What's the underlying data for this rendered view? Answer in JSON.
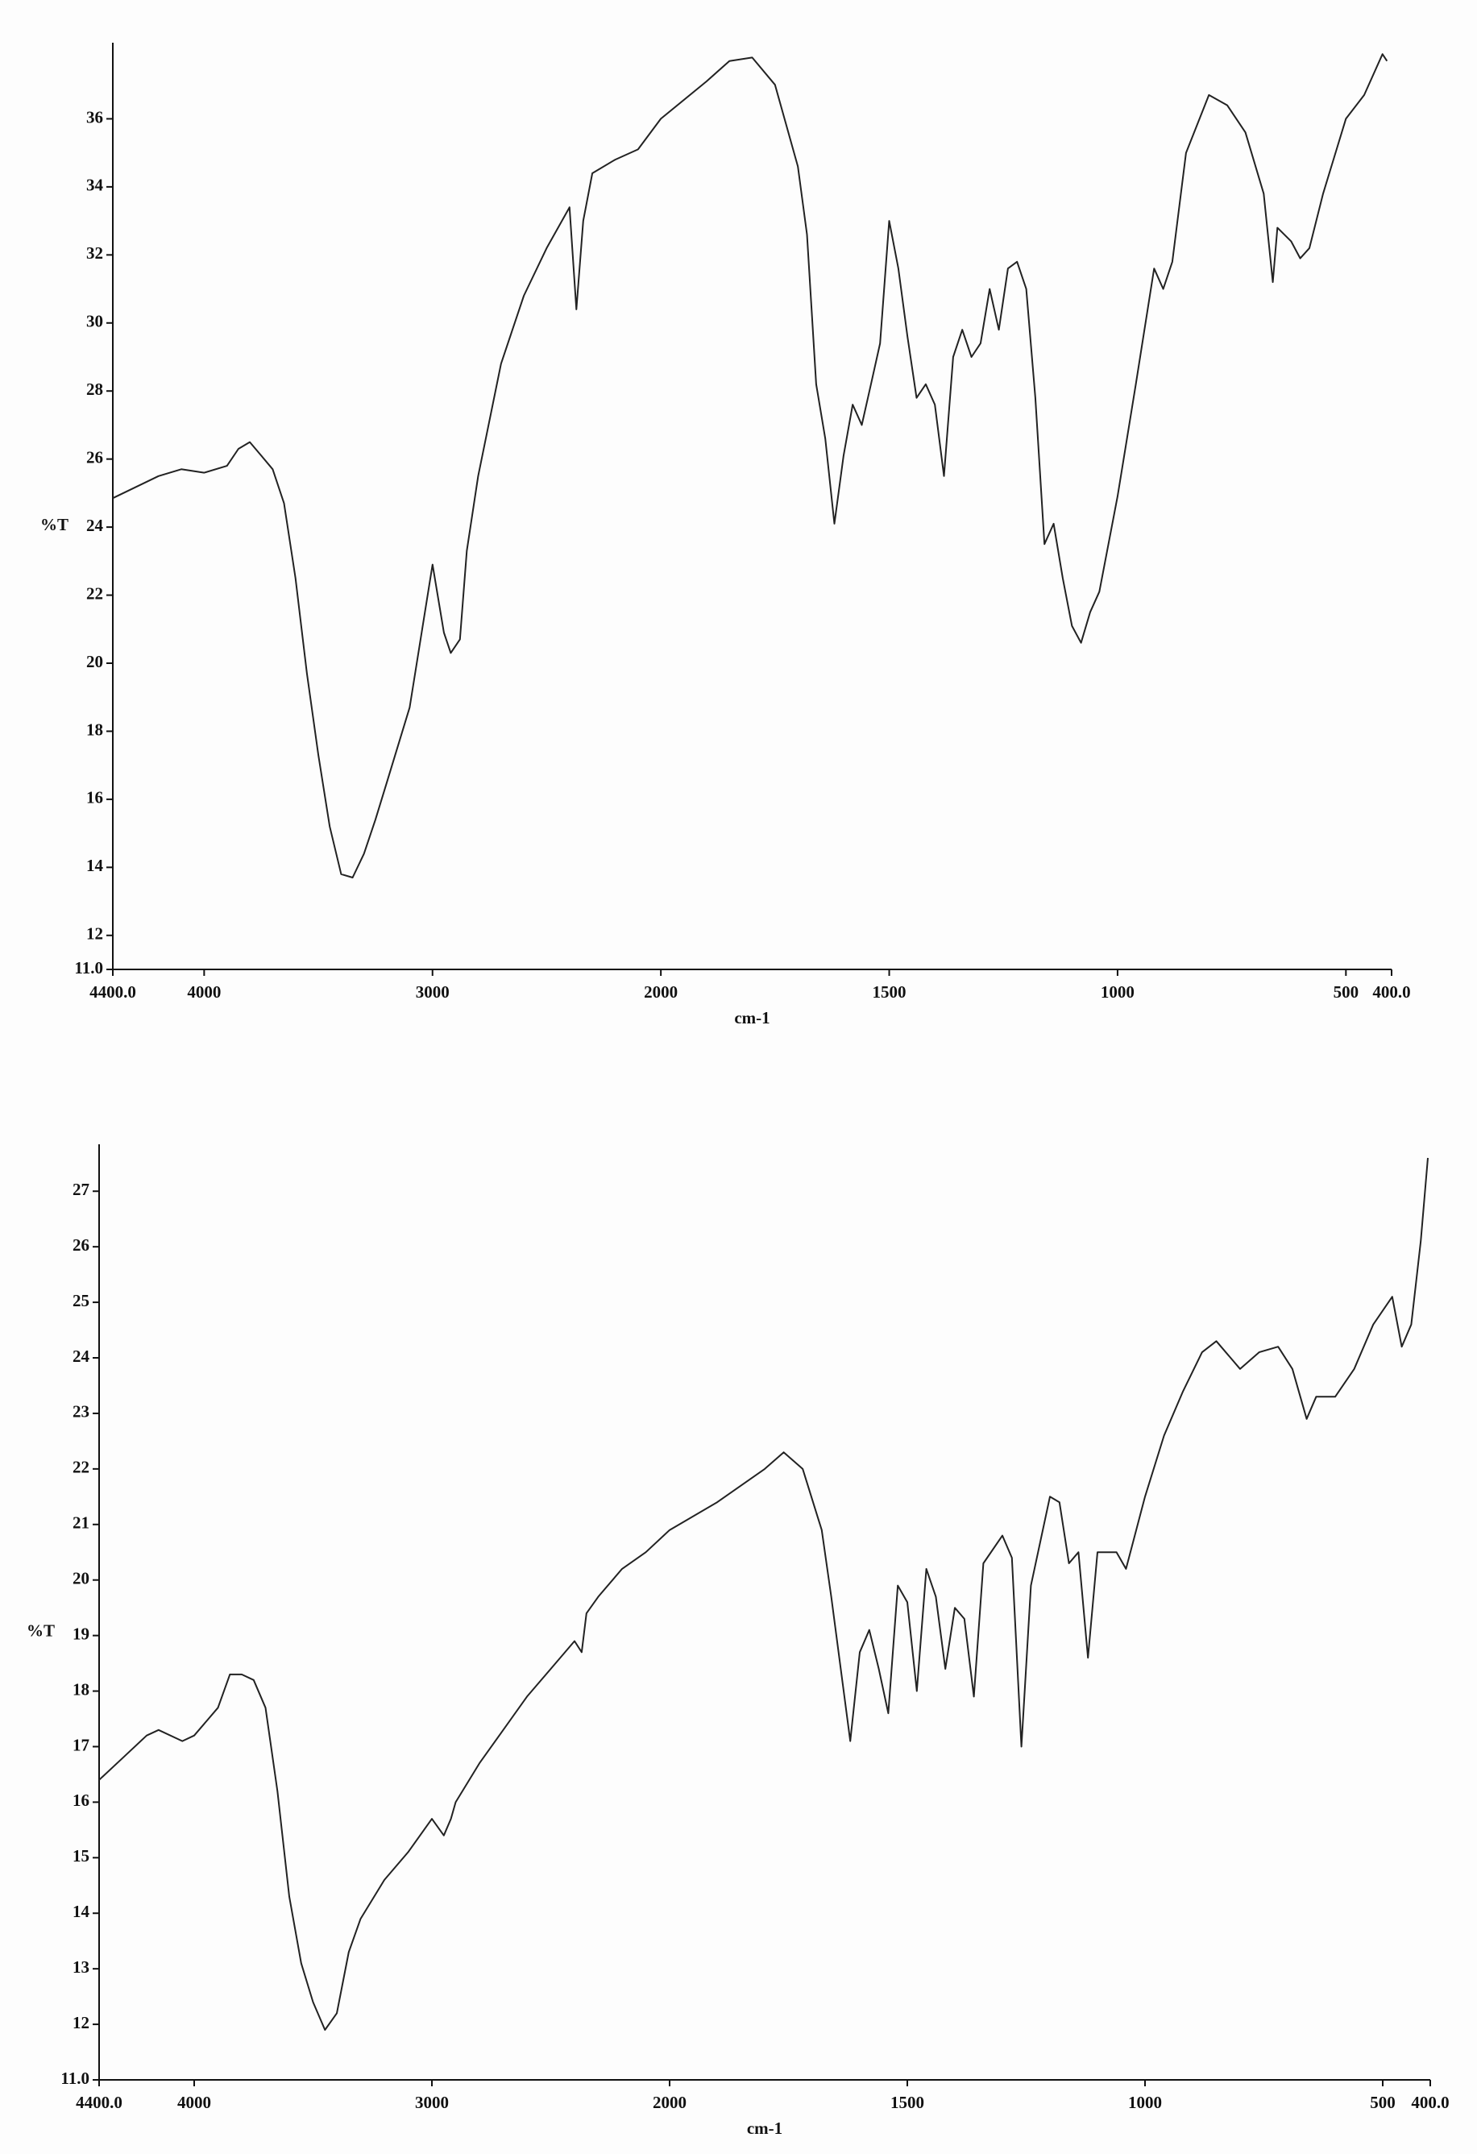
{
  "chart_data": [
    {
      "type": "line",
      "y_label": "%T",
      "x_label": "cm-1",
      "color": "#222222",
      "xlim": [
        4400,
        400
      ],
      "xscale_break": 2000,
      "ylim": [
        11,
        38
      ],
      "xticks": [
        {
          "value": 4400,
          "label": "4400.0"
        },
        4000,
        3000,
        2000,
        1500,
        1000,
        500,
        {
          "value": 400,
          "label": "400.0"
        }
      ],
      "yticks": [
        {
          "value": 11,
          "label": "11.0"
        },
        12,
        14,
        16,
        18,
        20,
        22,
        24,
        26,
        28,
        30,
        32,
        34,
        36
      ],
      "x": [
        4400,
        4200,
        4100,
        4000,
        3900,
        3850,
        3800,
        3750,
        3700,
        3650,
        3600,
        3550,
        3500,
        3450,
        3400,
        3350,
        3300,
        3250,
        3200,
        3100,
        3000,
        2950,
        2920,
        2880,
        2850,
        2800,
        2700,
        2600,
        2500,
        2400,
        2370,
        2340,
        2300,
        2200,
        2100,
        2000,
        1900,
        1850,
        1800,
        1750,
        1700,
        1680,
        1660,
        1640,
        1620,
        1600,
        1580,
        1560,
        1540,
        1520,
        1500,
        1480,
        1460,
        1440,
        1420,
        1400,
        1380,
        1360,
        1340,
        1320,
        1300,
        1280,
        1260,
        1240,
        1220,
        1200,
        1180,
        1160,
        1140,
        1120,
        1100,
        1080,
        1060,
        1040,
        1000,
        960,
        920,
        900,
        880,
        850,
        800,
        760,
        720,
        680,
        660,
        650,
        620,
        600,
        580,
        550,
        500,
        460,
        420,
        410
      ],
      "values": [
        24.85,
        25.5,
        25.7,
        25.6,
        25.8,
        26.3,
        26.5,
        26.1,
        25.7,
        24.7,
        22.5,
        19.7,
        17.3,
        15.2,
        13.8,
        13.7,
        14.4,
        15.4,
        16.5,
        18.7,
        22.9,
        20.9,
        20.3,
        20.7,
        23.3,
        25.5,
        28.8,
        30.8,
        32.2,
        33.4,
        30.4,
        33.0,
        34.4,
        34.8,
        35.1,
        36.0,
        37.1,
        37.7,
        37.8,
        37.0,
        34.6,
        32.6,
        28.2,
        26.6,
        24.1,
        26.1,
        27.6,
        27.0,
        28.2,
        29.4,
        33.0,
        31.6,
        29.6,
        27.8,
        28.2,
        27.6,
        25.5,
        29.0,
        29.8,
        29.0,
        29.4,
        31.0,
        29.8,
        31.6,
        31.8,
        31.0,
        27.8,
        23.5,
        24.1,
        22.5,
        21.1,
        20.6,
        21.5,
        22.1,
        24.9,
        28.2,
        31.6,
        31.0,
        31.8,
        35.0,
        36.7,
        36.4,
        35.6,
        33.8,
        31.2,
        32.8,
        32.4,
        31.9,
        32.2,
        33.8,
        36.0,
        36.7,
        37.9,
        37.7
      ]
    },
    {
      "type": "line",
      "y_label": "%T",
      "x_label": "cm-1",
      "color": "#222222",
      "xlim": [
        4400,
        400
      ],
      "xscale_break": 2000,
      "ylim": [
        11,
        27.7
      ],
      "xticks": [
        {
          "value": 4400,
          "label": "4400.0"
        },
        4000,
        3000,
        2000,
        1500,
        1000,
        500,
        {
          "value": 400,
          "label": "400.0"
        }
      ],
      "yticks": [
        {
          "value": 11,
          "label": "11.0"
        },
        12,
        13,
        14,
        15,
        16,
        17,
        18,
        19,
        20,
        21,
        22,
        23,
        24,
        25,
        26,
        27
      ],
      "x": [
        4400,
        4300,
        4200,
        4150,
        4050,
        4000,
        3900,
        3850,
        3800,
        3750,
        3700,
        3650,
        3600,
        3550,
        3500,
        3450,
        3400,
        3350,
        3300,
        3200,
        3100,
        3000,
        2950,
        2920,
        2900,
        2800,
        2700,
        2600,
        2500,
        2400,
        2370,
        2350,
        2300,
        2200,
        2100,
        2000,
        1900,
        1800,
        1760,
        1720,
        1680,
        1660,
        1640,
        1620,
        1600,
        1580,
        1560,
        1540,
        1520,
        1500,
        1480,
        1460,
        1440,
        1420,
        1400,
        1380,
        1360,
        1340,
        1300,
        1280,
        1260,
        1240,
        1200,
        1180,
        1160,
        1140,
        1120,
        1100,
        1060,
        1040,
        1000,
        960,
        920,
        880,
        850,
        800,
        760,
        720,
        690,
        660,
        640,
        600,
        560,
        520,
        480,
        460,
        440,
        420,
        405
      ],
      "values": [
        16.4,
        16.8,
        17.2,
        17.3,
        17.1,
        17.2,
        17.7,
        18.3,
        18.3,
        18.2,
        17.7,
        16.2,
        14.3,
        13.1,
        12.4,
        11.9,
        12.2,
        13.3,
        13.9,
        14.6,
        15.1,
        15.7,
        15.4,
        15.7,
        16.0,
        16.7,
        17.3,
        17.9,
        18.4,
        18.9,
        18.7,
        19.4,
        19.7,
        20.2,
        20.5,
        20.9,
        21.4,
        22.0,
        22.3,
        22.0,
        20.9,
        19.7,
        18.4,
        17.1,
        18.7,
        19.1,
        18.4,
        17.6,
        19.9,
        19.6,
        18.0,
        20.2,
        19.7,
        18.4,
        19.5,
        19.3,
        17.9,
        20.3,
        20.8,
        20.4,
        17.0,
        19.9,
        21.5,
        21.4,
        20.3,
        20.5,
        18.6,
        20.5,
        20.5,
        20.2,
        21.5,
        22.6,
        23.4,
        24.1,
        24.3,
        23.8,
        24.1,
        24.2,
        23.8,
        22.9,
        23.3,
        23.3,
        23.8,
        24.6,
        25.1,
        24.2,
        24.6,
        26.1,
        27.6
      ]
    }
  ]
}
